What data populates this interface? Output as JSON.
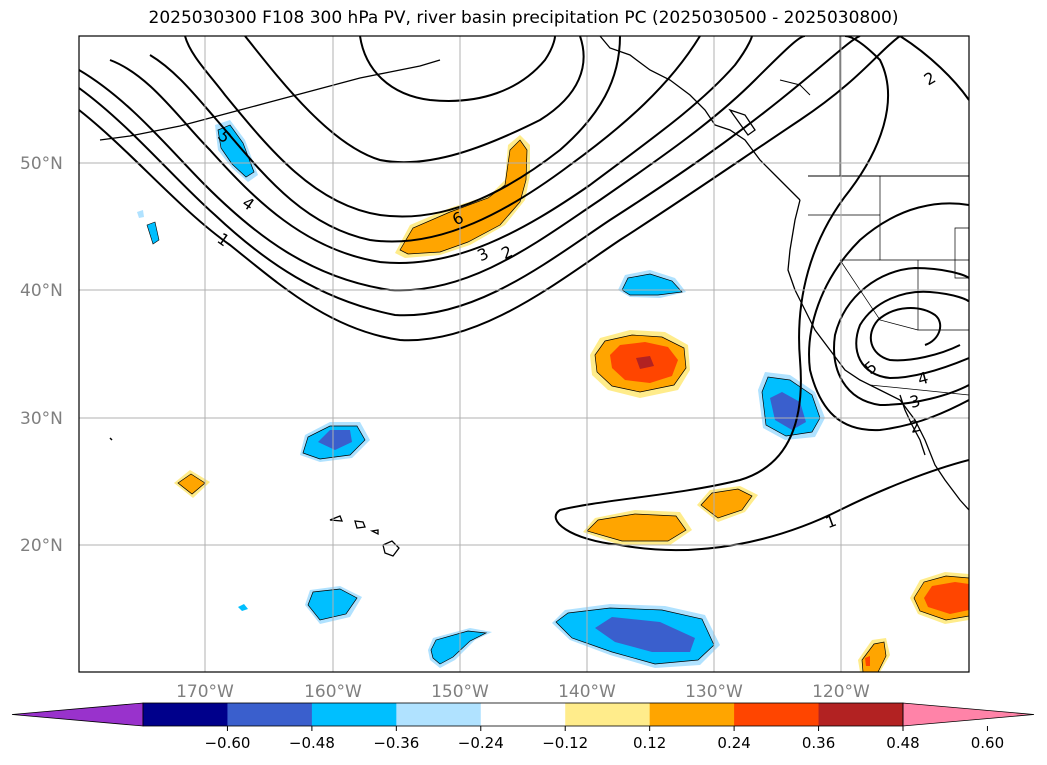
{
  "title": "2025030300 F108 300 hPa PV, river basin precipitation PC (2025030500 - 2025030800)",
  "lat_labels": [
    "50°N",
    "40°N",
    "30°N",
    "20°N"
  ],
  "lon_labels": [
    "170°W",
    "160°W",
    "150°W",
    "140°W",
    "130°W",
    "120°W"
  ],
  "contour_labels": [
    "5",
    "4",
    "1",
    "6",
    "3",
    "2",
    "2",
    "1",
    "5",
    "4",
    "3",
    "2"
  ],
  "colorbar": {
    "ticks": [
      "−0.60",
      "−0.48",
      "−0.36",
      "−0.24",
      "−0.12",
      "0.12",
      "0.24",
      "0.36",
      "0.48",
      "0.60"
    ],
    "colors": [
      "#9932CC",
      "#00008B",
      "#3A5FCD",
      "#00BFFF",
      "#B0E2FF",
      "#FFFFFF",
      "#FFEC8B",
      "#FFA500",
      "#FF4500",
      "#B22222",
      "#FF83A8"
    ]
  },
  "colors": {
    "pv_contour": "#000000",
    "grid": "#b0b0b0",
    "coast": "#000000"
  }
}
